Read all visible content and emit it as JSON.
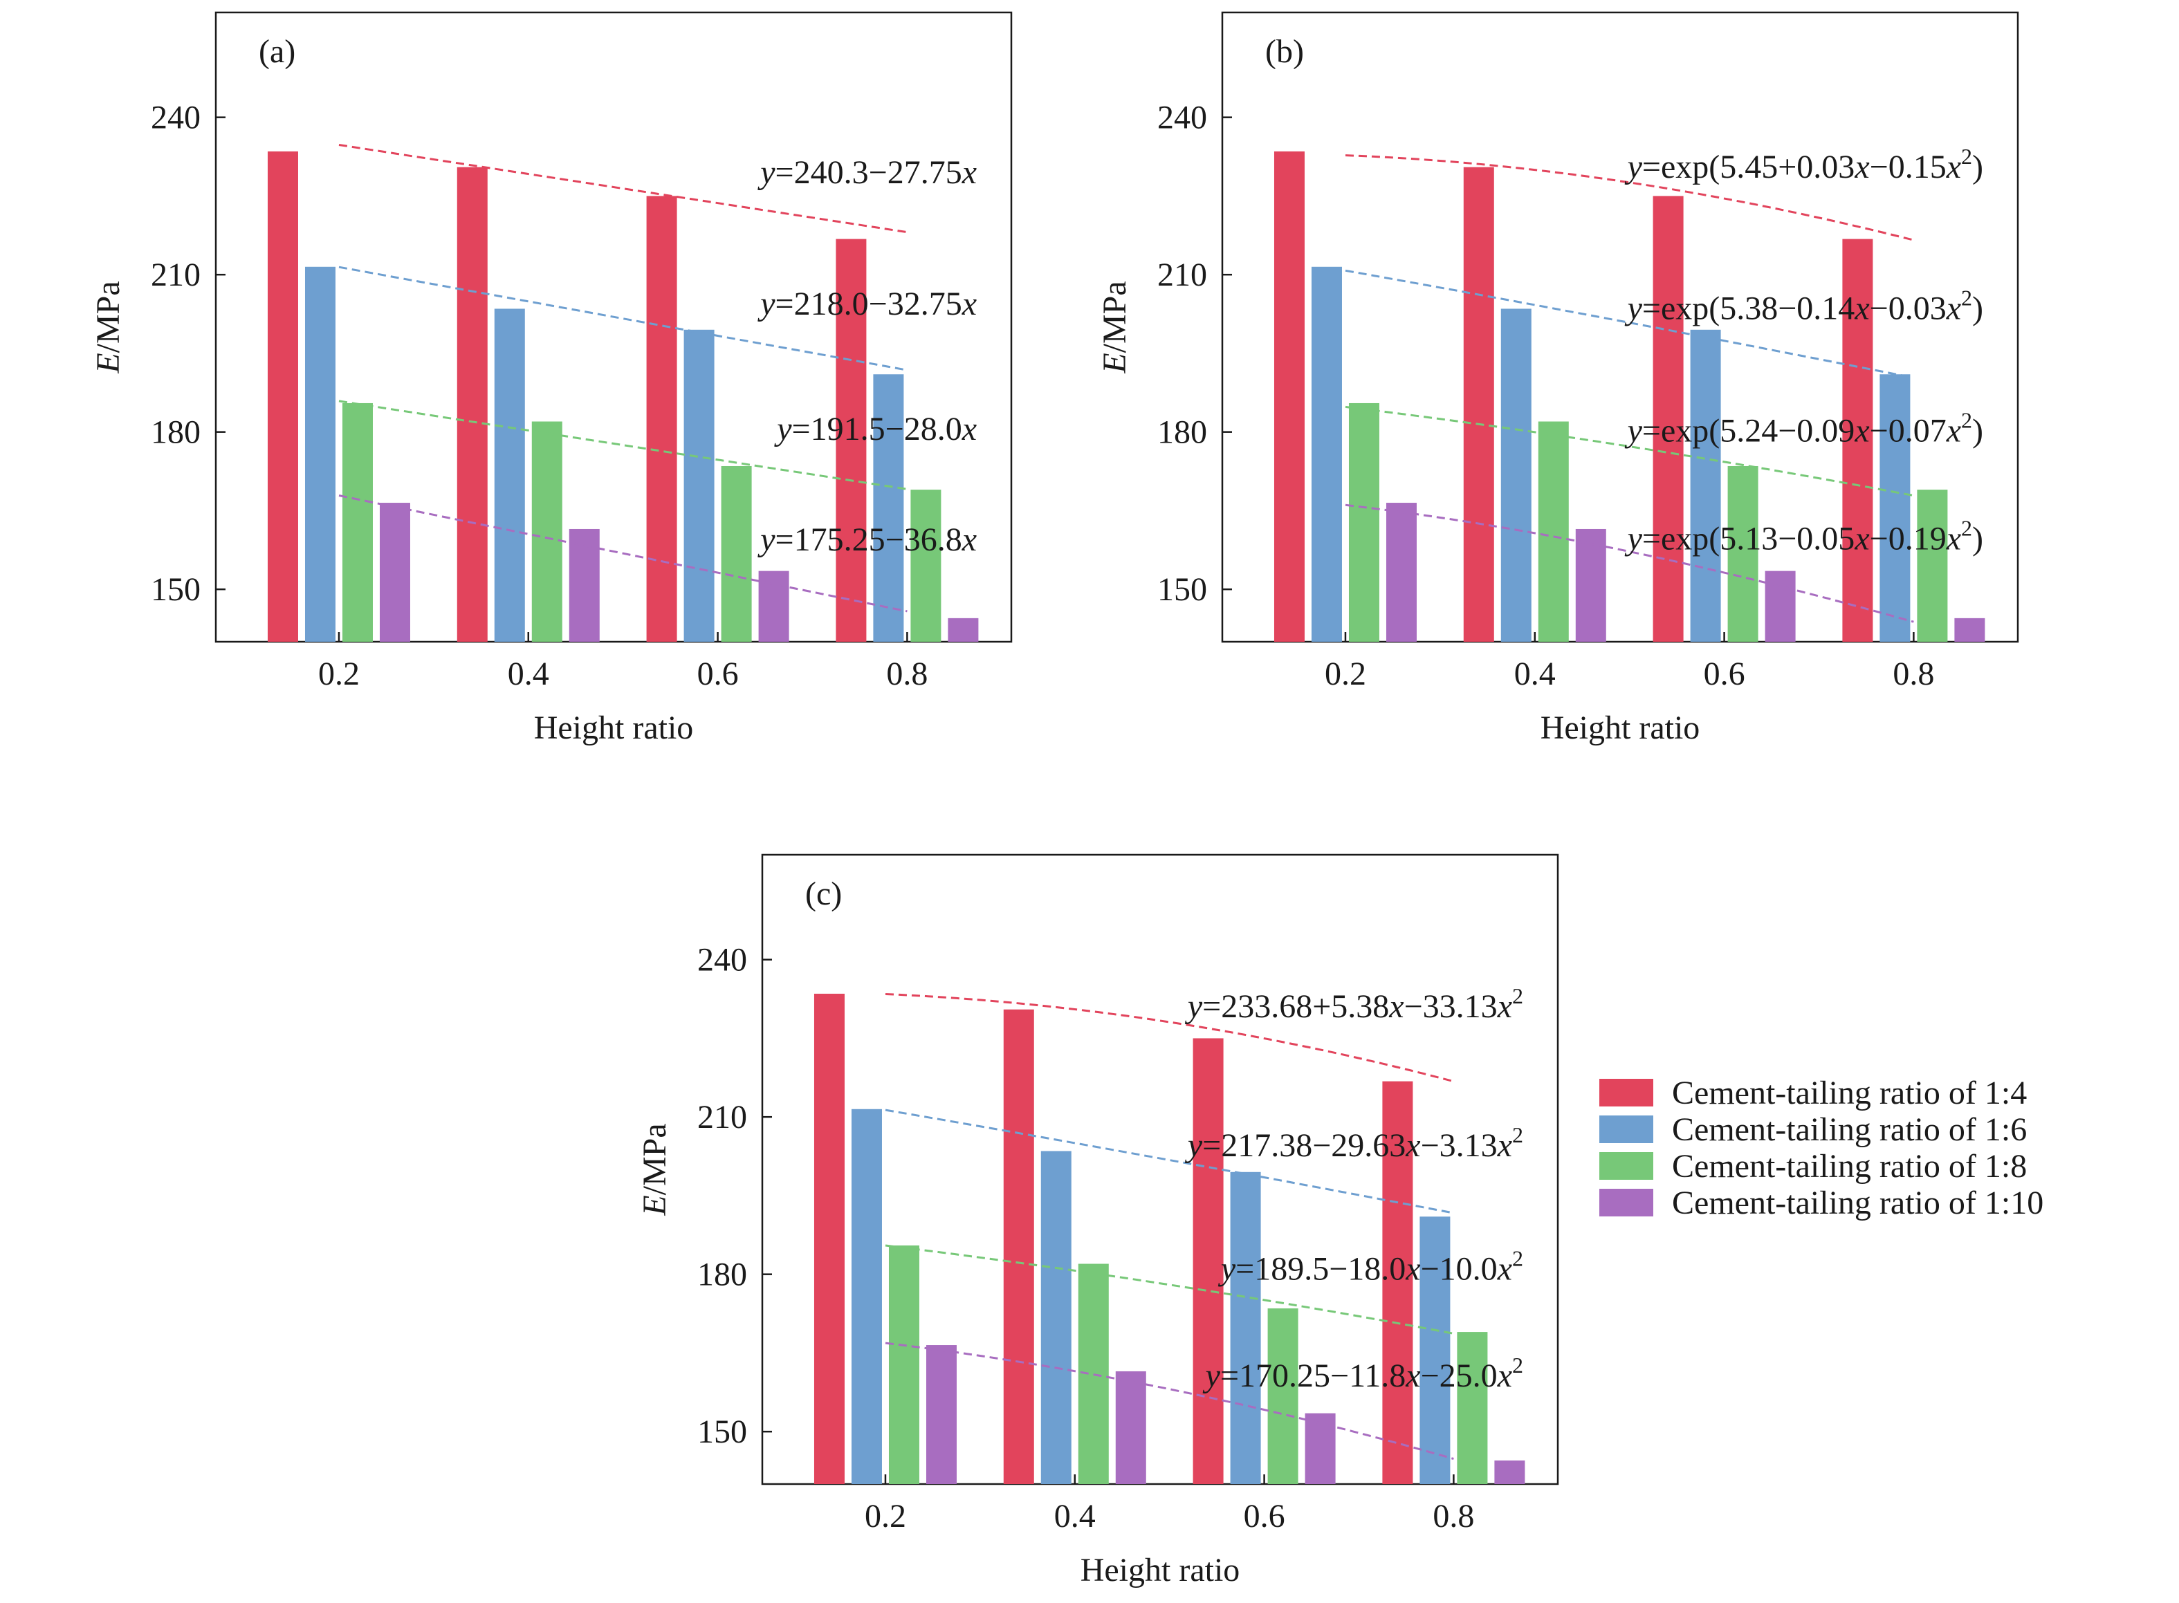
{
  "legend": {
    "placement": "right of panel (c)",
    "entries": [
      {
        "label": "Cement-tailing ratio of 1:4",
        "color": "#e2445c"
      },
      {
        "label": "Cement-tailing ratio of 1:6",
        "color": "#6e9fd0"
      },
      {
        "label": "Cement-tailing ratio of 1:8",
        "color": "#77c878"
      },
      {
        "label": "Cement-tailing ratio of 1:10",
        "color": "#a86dc0"
      }
    ]
  },
  "chart_data": [
    {
      "type": "bar",
      "panel_label": "(a)",
      "xlabel": "Height ratio",
      "ylabel_italic": "E",
      "ylabel_rest": "/MPa",
      "categories": [
        "0.2",
        "0.4",
        "0.6",
        "0.8"
      ],
      "ylim": [
        140,
        260
      ],
      "yticks": [
        150,
        180,
        210,
        240
      ],
      "grid": false,
      "series": [
        {
          "name": "Cement-tailing ratio of 1:4",
          "color": "#e2445c",
          "values": [
            233.5,
            230.5,
            225.0,
            216.8
          ]
        },
        {
          "name": "Cement-tailing ratio of 1:6",
          "color": "#6e9fd0",
          "values": [
            211.5,
            203.5,
            199.5,
            191.0
          ]
        },
        {
          "name": "Cement-tailing ratio of 1:8",
          "color": "#77c878",
          "values": [
            185.5,
            182.0,
            173.5,
            169.0
          ]
        },
        {
          "name": "Cement-tailing ratio of 1:10",
          "color": "#a86dc0",
          "values": [
            166.5,
            161.5,
            153.5,
            144.5
          ]
        }
      ],
      "fits": [
        {
          "series": 0,
          "coef": [
            240.3,
            -27.75,
            0
          ],
          "model": "poly",
          "label": {
            "prefix": "",
            "var": "y",
            "body": "=240.3−27.75",
            "x": "x",
            "tail": "",
            "sup": ""
          }
        },
        {
          "series": 1,
          "coef": [
            218.0,
            -32.75,
            0
          ],
          "model": "poly",
          "label": {
            "prefix": "",
            "var": "y",
            "body": "=218.0−32.75",
            "x": "x",
            "tail": "",
            "sup": ""
          }
        },
        {
          "series": 2,
          "coef": [
            191.5,
            -28.0,
            0
          ],
          "model": "poly",
          "label": {
            "prefix": "",
            "var": "y",
            "body": "=191.5−28.0",
            "x": "x",
            "tail": "",
            "sup": ""
          }
        },
        {
          "series": 3,
          "coef": [
            175.25,
            -36.8,
            0
          ],
          "model": "poly",
          "label": {
            "prefix": "",
            "var": "y",
            "body": "=175.25−36.8",
            "x": "x",
            "tail": "",
            "sup": ""
          }
        }
      ]
    },
    {
      "type": "bar",
      "panel_label": "(b)",
      "xlabel": "Height ratio",
      "ylabel_italic": "E",
      "ylabel_rest": "/MPa",
      "categories": [
        "0.2",
        "0.4",
        "0.6",
        "0.8"
      ],
      "ylim": [
        140,
        260
      ],
      "yticks": [
        150,
        180,
        210,
        240
      ],
      "grid": false,
      "series": [
        {
          "name": "Cement-tailing ratio of 1:4",
          "color": "#e2445c",
          "values": [
            233.5,
            230.5,
            225.0,
            216.8
          ]
        },
        {
          "name": "Cement-tailing ratio of 1:6",
          "color": "#6e9fd0",
          "values": [
            211.5,
            203.5,
            199.5,
            191.0
          ]
        },
        {
          "name": "Cement-tailing ratio of 1:8",
          "color": "#77c878",
          "values": [
            185.5,
            182.0,
            173.5,
            169.0
          ]
        },
        {
          "name": "Cement-tailing ratio of 1:10",
          "color": "#a86dc0",
          "values": [
            166.5,
            161.5,
            153.5,
            144.5
          ]
        }
      ],
      "fits": [
        {
          "series": 0,
          "coef": [
            5.45,
            0.03,
            -0.15
          ],
          "model": "exp",
          "label": {
            "var": "y",
            "body": "=exp(5.45+0.03",
            "x": "x",
            "tail": "−0.15",
            "x2": "x",
            "sup": "2",
            "close": ")"
          }
        },
        {
          "series": 1,
          "coef": [
            5.38,
            -0.14,
            -0.03
          ],
          "model": "exp",
          "label": {
            "var": "y",
            "body": "=exp(5.38−0.14",
            "x": "x",
            "tail": "−0.03",
            "x2": "x",
            "sup": "2",
            "close": ")"
          }
        },
        {
          "series": 2,
          "coef": [
            5.24,
            -0.09,
            -0.07
          ],
          "model": "exp",
          "label": {
            "var": "y",
            "body": "=exp(5.24−0.09",
            "x": "x",
            "tail": "−0.07",
            "x2": "x",
            "sup": "2",
            "close": ")"
          }
        },
        {
          "series": 3,
          "coef": [
            5.13,
            -0.05,
            -0.19
          ],
          "model": "exp",
          "label": {
            "var": "y",
            "body": "=exp(5.13−0.05",
            "x": "x",
            "tail": "−0.19",
            "x2": "x",
            "sup": "2",
            "close": ")"
          }
        }
      ]
    },
    {
      "type": "bar",
      "panel_label": "(c)",
      "xlabel": "Height ratio",
      "ylabel_italic": "E",
      "ylabel_rest": "/MPa",
      "categories": [
        "0.2",
        "0.4",
        "0.6",
        "0.8"
      ],
      "ylim": [
        140,
        260
      ],
      "yticks": [
        150,
        180,
        210,
        240
      ],
      "grid": false,
      "series": [
        {
          "name": "Cement-tailing ratio of 1:4",
          "color": "#e2445c",
          "values": [
            233.5,
            230.5,
            225.0,
            216.8
          ]
        },
        {
          "name": "Cement-tailing ratio of 1:6",
          "color": "#6e9fd0",
          "values": [
            211.5,
            203.5,
            199.5,
            191.0
          ]
        },
        {
          "name": "Cement-tailing ratio of 1:8",
          "color": "#77c878",
          "values": [
            185.5,
            182.0,
            173.5,
            169.0
          ]
        },
        {
          "name": "Cement-tailing ratio of 1:10",
          "color": "#a86dc0",
          "values": [
            166.5,
            161.5,
            153.5,
            144.5
          ]
        }
      ],
      "fits": [
        {
          "series": 0,
          "coef": [
            233.68,
            5.38,
            -33.13
          ],
          "model": "poly",
          "label": {
            "var": "y",
            "body": "=233.68+5.38",
            "x": "x",
            "tail": "−33.13",
            "x2": "x",
            "sup": "2",
            "close": ""
          }
        },
        {
          "series": 1,
          "coef": [
            217.38,
            -29.63,
            -3.13
          ],
          "model": "poly",
          "label": {
            "var": "y",
            "body": "=217.38−29.63",
            "x": "x",
            "tail": "−3.13",
            "x2": "x",
            "sup": "2",
            "close": ""
          }
        },
        {
          "series": 2,
          "coef": [
            189.5,
            -18.0,
            -10.0
          ],
          "model": "poly",
          "label": {
            "var": "y",
            "body": "=189.5−18.0",
            "x": "x",
            "tail": "−10.0",
            "x2": "x",
            "sup": "2",
            "close": ""
          }
        },
        {
          "series": 3,
          "coef": [
            170.25,
            -11.8,
            -25.0
          ],
          "model": "poly",
          "label": {
            "var": "y",
            "body": "=170.25−11.8",
            "x": "x",
            "tail": "−25.0",
            "x2": "x",
            "sup": "2",
            "close": ""
          }
        }
      ]
    }
  ]
}
